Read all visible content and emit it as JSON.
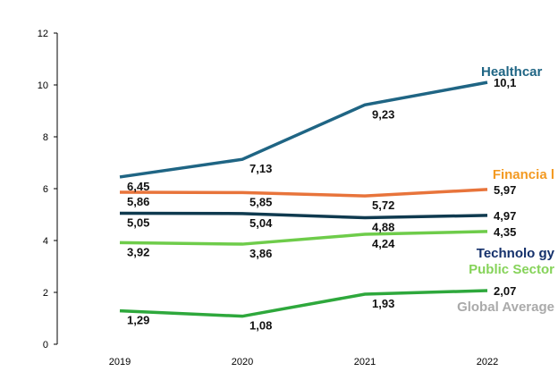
{
  "chart_data": {
    "type": "line",
    "title": "",
    "xlabel": "",
    "ylabel": "",
    "categories": [
      "2019",
      "2020",
      "2021",
      "2022"
    ],
    "ylim": [
      0,
      12
    ],
    "yticks": [
      "0",
      "2",
      "4",
      "6",
      "8",
      "10",
      "12"
    ],
    "grid": false,
    "series": [
      {
        "name": "Healthcar",
        "color": "#1f6584",
        "values": [
          6.45,
          7.13,
          9.23,
          10.1
        ],
        "labels": [
          "6,45",
          "7,13",
          "9,23",
          "10,1"
        ]
      },
      {
        "name": "Financia l",
        "color": "#e8743b",
        "name_color": "#f39a22",
        "values": [
          5.86,
          5.85,
          5.72,
          5.97
        ],
        "labels": [
          "5,86",
          "5,85",
          "5,72",
          "5,97"
        ]
      },
      {
        "name": "Technolo gy",
        "color": "#0f3a4f",
        "name_color": "#14306b",
        "values": [
          5.05,
          5.04,
          4.88,
          4.97
        ],
        "labels": [
          "5,05",
          "5,04",
          "4,88",
          "4,97"
        ]
      },
      {
        "name": "Public Sector",
        "color": "#6ecc4a",
        "name_color": "#86d35a",
        "values": [
          3.92,
          3.86,
          4.24,
          4.35
        ],
        "labels": [
          "3,92",
          "3,86",
          "4,24",
          "4,35"
        ]
      },
      {
        "name": "Global Average",
        "color": "#2ea83c",
        "name_color": "#aaaaaa",
        "values": [
          1.29,
          1.08,
          1.93,
          2.07
        ],
        "labels": [
          "1,29",
          "1,08",
          "1,93",
          "2,07"
        ]
      }
    ]
  }
}
